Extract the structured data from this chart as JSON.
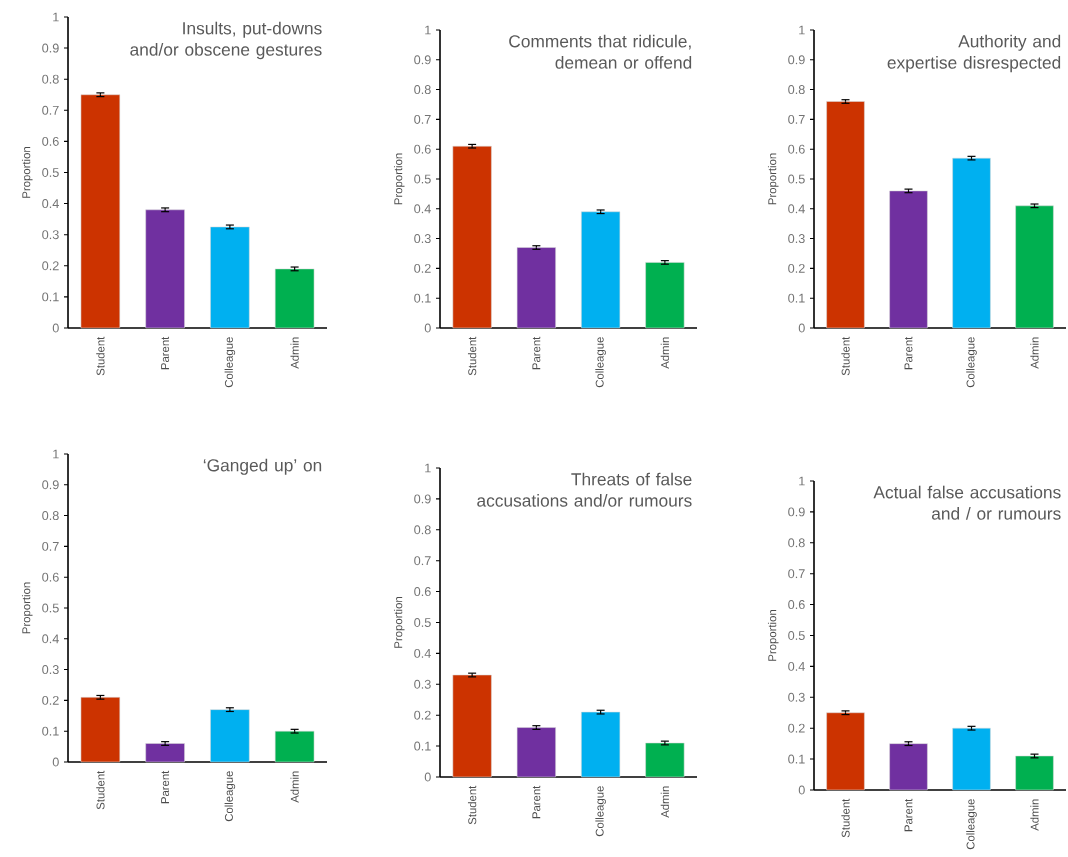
{
  "chart_data": [
    {
      "type": "bar",
      "title": "Insults, put-downs and/or obscene gestures",
      "ylabel": "Proportion",
      "categories": [
        "Student",
        "Parent",
        "Colleague",
        "Admin"
      ],
      "values": [
        0.75,
        0.38,
        0.325,
        0.19
      ],
      "errors": [
        0.006,
        0.006,
        0.006,
        0.006
      ],
      "colors": [
        "#cc3300",
        "#7030a0",
        "#00b0f0",
        "#00b050"
      ],
      "ylim": [
        0,
        1
      ],
      "yticks": [
        0,
        0.1,
        0.2,
        0.3,
        0.4,
        0.5,
        0.6,
        0.7,
        0.8,
        0.9,
        1
      ]
    },
    {
      "type": "bar",
      "title": "Comments that ridicule, demean or offend",
      "ylabel": "Proportion",
      "categories": [
        "Student",
        "Parent",
        "Colleague",
        "Admin"
      ],
      "values": [
        0.61,
        0.27,
        0.39,
        0.22
      ],
      "errors": [
        0.006,
        0.006,
        0.006,
        0.006
      ],
      "colors": [
        "#cc3300",
        "#7030a0",
        "#00b0f0",
        "#00b050"
      ],
      "ylim": [
        0,
        1
      ],
      "yticks": [
        0,
        0.1,
        0.2,
        0.3,
        0.4,
        0.5,
        0.6,
        0.7,
        0.8,
        0.9,
        1
      ]
    },
    {
      "type": "bar",
      "title": "Authority and expertise disrespected",
      "ylabel": "Proportion",
      "categories": [
        "Student",
        "Parent",
        "Colleague",
        "Admin"
      ],
      "values": [
        0.76,
        0.46,
        0.57,
        0.41
      ],
      "errors": [
        0.006,
        0.006,
        0.006,
        0.006
      ],
      "colors": [
        "#cc3300",
        "#7030a0",
        "#00b0f0",
        "#00b050"
      ],
      "ylim": [
        0,
        1
      ],
      "yticks": [
        0,
        0.1,
        0.2,
        0.3,
        0.4,
        0.5,
        0.6,
        0.7,
        0.8,
        0.9,
        1
      ]
    },
    {
      "type": "bar",
      "title": "‘Ganged up’ on",
      "ylabel": "Proportion",
      "categories": [
        "Student",
        "Parent",
        "Colleague",
        "Admin"
      ],
      "values": [
        0.21,
        0.06,
        0.17,
        0.1
      ],
      "errors": [
        0.006,
        0.006,
        0.006,
        0.006
      ],
      "colors": [
        "#cc3300",
        "#7030a0",
        "#00b0f0",
        "#00b050"
      ],
      "ylim": [
        0,
        1
      ],
      "yticks": [
        0,
        0.1,
        0.2,
        0.3,
        0.4,
        0.5,
        0.6,
        0.7,
        0.8,
        0.9,
        1
      ]
    },
    {
      "type": "bar",
      "title": "Threats of false accusations and/or rumours",
      "ylabel": "Proportion",
      "categories": [
        "Student",
        "Parent",
        "Colleague",
        "Admin"
      ],
      "values": [
        0.33,
        0.16,
        0.21,
        0.11
      ],
      "errors": [
        0.006,
        0.006,
        0.006,
        0.006
      ],
      "colors": [
        "#cc3300",
        "#7030a0",
        "#00b0f0",
        "#00b050"
      ],
      "ylim": [
        0,
        1
      ],
      "yticks": [
        0,
        0.1,
        0.2,
        0.3,
        0.4,
        0.5,
        0.6,
        0.7,
        0.8,
        0.9,
        1
      ]
    },
    {
      "type": "bar",
      "title": "Actual false accusations and / or rumours",
      "ylabel": "Proportion",
      "categories": [
        "Student",
        "Parent",
        "Colleague",
        "Admin"
      ],
      "values": [
        0.25,
        0.15,
        0.2,
        0.11
      ],
      "errors": [
        0.006,
        0.006,
        0.006,
        0.006
      ],
      "colors": [
        "#cc3300",
        "#7030a0",
        "#00b0f0",
        "#00b050"
      ],
      "ylim": [
        0,
        1
      ],
      "yticks": [
        0,
        0.1,
        0.2,
        0.3,
        0.4,
        0.5,
        0.6,
        0.7,
        0.8,
        0.9,
        1
      ]
    }
  ]
}
